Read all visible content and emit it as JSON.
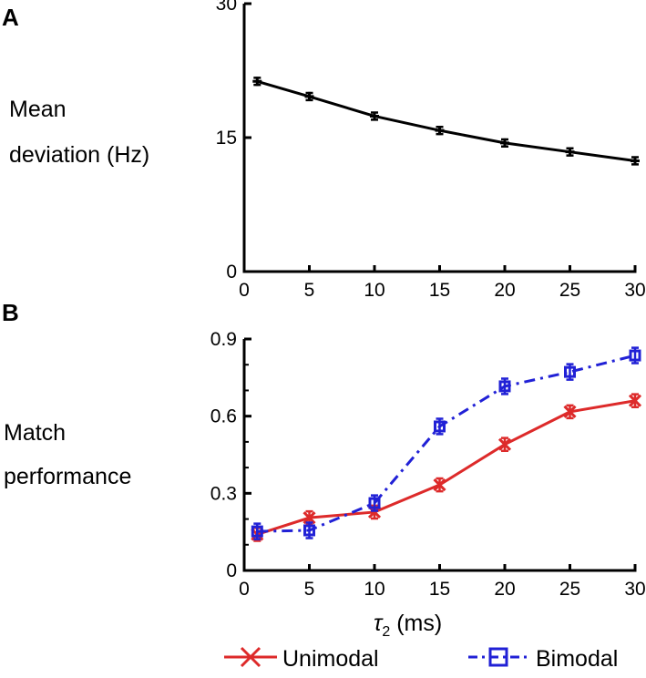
{
  "chart_data": [
    {
      "panel": "A",
      "type": "line",
      "ylabel_lines": [
        "Mean",
        "deviation (Hz)"
      ],
      "xlim": [
        0,
        30
      ],
      "ylim": [
        0,
        30
      ],
      "xticks": [
        0,
        5,
        10,
        15,
        20,
        25,
        30
      ],
      "yticks": [
        0,
        15,
        30
      ],
      "x": [
        1,
        5,
        10,
        15,
        20,
        25,
        30
      ],
      "series": [
        {
          "name": "Mean deviation",
          "color": "#000000",
          "values": [
            21.3,
            19.6,
            17.4,
            15.8,
            14.4,
            13.4,
            12.4
          ],
          "error": 0.4
        }
      ]
    },
    {
      "panel": "B",
      "type": "line",
      "ylabel_lines": [
        "Match",
        "performance"
      ],
      "xlabel_main": "τ",
      "xlabel_sub": "2",
      "xlabel_unit": " (ms)",
      "xlim": [
        0,
        30
      ],
      "ylim": [
        0,
        0.9
      ],
      "xticks": [
        0,
        5,
        10,
        15,
        20,
        25,
        30
      ],
      "yticks": [
        "0",
        "0.3",
        "0.6",
        "0.9"
      ],
      "x": [
        1,
        5,
        10,
        15,
        20,
        25,
        30
      ],
      "series": [
        {
          "name": "Unimodal",
          "color": "#dd2a2a",
          "marker": "x",
          "dash": "solid",
          "values": [
            0.14,
            0.205,
            0.227,
            0.333,
            0.49,
            0.617,
            0.66
          ],
          "error": 0.025
        },
        {
          "name": "Bimodal",
          "color": "#2121d6",
          "marker": "square",
          "dash": "dashdot",
          "values": [
            0.152,
            0.156,
            0.262,
            0.56,
            0.716,
            0.772,
            0.836
          ],
          "error": 0.03
        }
      ],
      "legend": "bottom"
    }
  ]
}
